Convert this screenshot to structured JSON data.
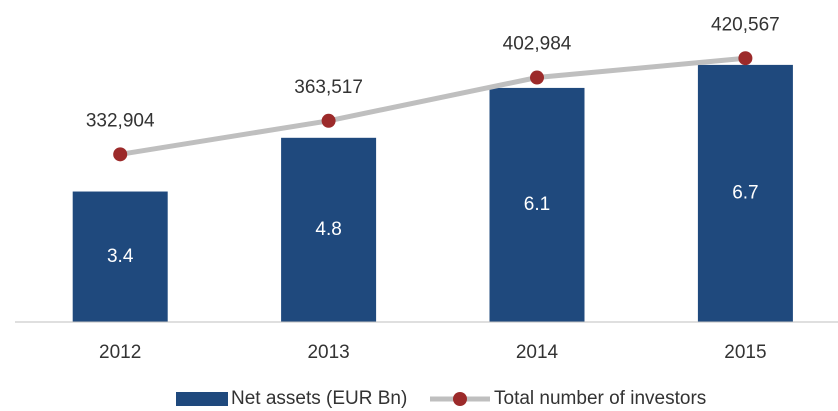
{
  "chart_data": {
    "type": "bar",
    "categories": [
      "2012",
      "2013",
      "2014",
      "2015"
    ],
    "ylim": [
      0,
      8
    ],
    "y2lim": [
      180000,
      460000
    ],
    "series": [
      {
        "name": "Net assets (EUR Bn)",
        "type": "bar",
        "color": "#1f497d",
        "values": [
          3.4,
          4.8,
          6.1,
          6.7
        ]
      },
      {
        "name": "Total number of investors",
        "type": "line",
        "axis": "y2",
        "color": "#bfbfbf",
        "marker_color": "#9c2a2a",
        "values": [
          332904,
          363517,
          402984,
          420567
        ],
        "value_labels": [
          "332,904",
          "363,517",
          "402,984",
          "420,567"
        ]
      }
    ]
  }
}
